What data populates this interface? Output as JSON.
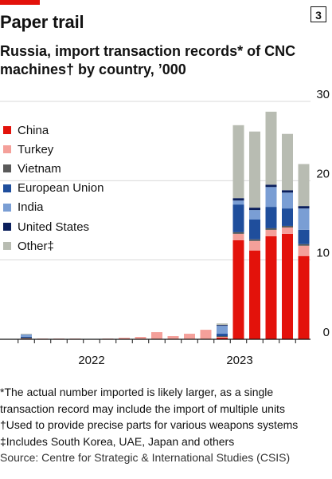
{
  "header": {
    "title": "Paper trail",
    "chart_number": "3",
    "subtitle": "Russia, import transaction records* of CNC machines† by country, ’000"
  },
  "footnotes": [
    "*The actual number imported is likely larger, as a single",
    "transaction record may include the import of multiple units",
    "†Used to provide precise parts for various weapons systems",
    "‡Includes South Korea, UAE, Japan and others"
  ],
  "source": "Source: Centre for Strategic & International Studies (CSIS)",
  "chart_data": {
    "type": "bar",
    "stacked": true,
    "x_tick_labels": [
      "2022",
      "2023"
    ],
    "y_ticks": [
      0,
      10,
      20,
      30
    ],
    "ylim": [
      0,
      30
    ],
    "legend_position": "top-left",
    "categories": [
      "2022-01",
      "2022-02",
      "2022-03",
      "2022-04",
      "2022-05",
      "2022-06",
      "2022-07",
      "2022-08",
      "2022-09",
      "2022-10",
      "2022-11",
      "2022-12",
      "2023-01",
      "2023-02",
      "2023-03",
      "2023-04",
      "2023-05",
      "2023-06"
    ],
    "series": [
      {
        "name": "China",
        "color": "#e3120b",
        "values": [
          0,
          0,
          0,
          0,
          0,
          0,
          0,
          0,
          0,
          0,
          0,
          0,
          0.2,
          12.5,
          11.2,
          13.0,
          13.3,
          10.5
        ]
      },
      {
        "name": "Turkey",
        "color": "#f4a09a",
        "values": [
          0.1,
          0.1,
          0.1,
          0.1,
          0,
          0.1,
          0.2,
          0.3,
          0.9,
          0.4,
          0.7,
          1.2,
          0.1,
          0.8,
          1.2,
          0.8,
          0.8,
          1.3
        ]
      },
      {
        "name": "Vietnam",
        "color": "#5a5a5a",
        "values": [
          0.1,
          0,
          0,
          0,
          0,
          0,
          0,
          0,
          0,
          0,
          0,
          0,
          0.1,
          0.2,
          0.2,
          0.2,
          0.2,
          0.2
        ]
      },
      {
        "name": "European Union",
        "color": "#1f4e9c",
        "values": [
          0.1,
          0,
          0,
          0,
          0,
          0,
          0,
          0,
          0,
          0,
          0,
          0,
          0.3,
          3.5,
          2.5,
          2.7,
          2.2,
          1.8
        ]
      },
      {
        "name": "India",
        "color": "#7a9ed4",
        "values": [
          0.3,
          0,
          0,
          0,
          0,
          0,
          0,
          0,
          0,
          0,
          0,
          0,
          1.0,
          0.5,
          1.2,
          2.5,
          2.0,
          2.7
        ]
      },
      {
        "name": "United States",
        "color": "#0b1f5c",
        "values": [
          0,
          0,
          0,
          0,
          0,
          0,
          0,
          0,
          0,
          0,
          0,
          0,
          0.1,
          0.3,
          0.3,
          0.3,
          0.3,
          0.3
        ]
      },
      {
        "name": "Other‡",
        "color": "#b8bcb2",
        "values": [
          0.1,
          0,
          0,
          0,
          0,
          0,
          0,
          0,
          0,
          0,
          0,
          0,
          0.2,
          9.2,
          9.6,
          9.2,
          7.1,
          5.3
        ]
      }
    ]
  }
}
